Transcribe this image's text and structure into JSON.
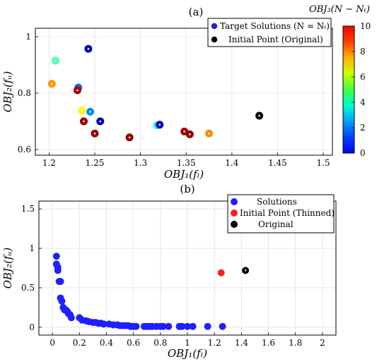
{
  "chart_data": [
    {
      "panel_label": "(a)",
      "type": "scatter",
      "xlabel": "OBJ₁(fₗ)",
      "ylabel": "OBJ₂(fᵤ)",
      "xlim": [
        1.185,
        1.51
      ],
      "ylim": [
        0.58,
        1.03
      ],
      "xticks": [
        1.2,
        1.25,
        1.3,
        1.35,
        1.4,
        1.45,
        1.5
      ],
      "yticks": [
        0.6,
        0.8,
        1
      ],
      "xtick_labels": [
        "1.2",
        "1.25",
        "1.3",
        "1.35",
        "1.4",
        "1.45",
        "1.5"
      ],
      "ytick_labels": [
        "0.6",
        "0.8",
        "1"
      ],
      "grid": true,
      "legend_position": "top-right",
      "colorbar": {
        "label": "OBJ₃(N − Nₜ)",
        "min": 0,
        "max": 10,
        "ticks": [
          0,
          2,
          4,
          6,
          8,
          10
        ],
        "tick_labels": [
          "0",
          "2",
          "4",
          "6",
          "8",
          "10"
        ],
        "colormap": "jet"
      },
      "series": [
        {
          "name": "Target Solutions (N = Nₜ)",
          "color": "#1f1fd6",
          "points": [
            {
              "x": 1.243,
              "y": 0.957,
              "c": 0.5
            },
            {
              "x": 1.207,
              "y": 0.915,
              "c": 4.5
            },
            {
              "x": 1.203,
              "y": 0.833,
              "c": 7.3
            },
            {
              "x": 1.232,
              "y": 0.82,
              "c": 2.3
            },
            {
              "x": 1.231,
              "y": 0.81,
              "c": 9.6
            },
            {
              "x": 1.236,
              "y": 0.738,
              "c": 6.3
            },
            {
              "x": 1.245,
              "y": 0.734,
              "c": 2.6
            },
            {
              "x": 1.238,
              "y": 0.7,
              "c": 9.8
            },
            {
              "x": 1.256,
              "y": 0.7,
              "c": 0.4
            },
            {
              "x": 1.25,
              "y": 0.657,
              "c": 9.7
            },
            {
              "x": 1.288,
              "y": 0.643,
              "c": 9.8
            },
            {
              "x": 1.318,
              "y": 0.686,
              "c": 4.2
            },
            {
              "x": 1.321,
              "y": 0.688,
              "c": 0.6
            },
            {
              "x": 1.348,
              "y": 0.664,
              "c": 9.7
            },
            {
              "x": 1.354,
              "y": 0.654,
              "c": 9.8
            },
            {
              "x": 1.375,
              "y": 0.657,
              "c": 7.4
            }
          ]
        },
        {
          "name": "Initial Point (Original)",
          "color": "#000000",
          "points": [
            {
              "x": 1.43,
              "y": 0.72
            }
          ]
        }
      ]
    },
    {
      "panel_label": "(b)",
      "type": "scatter",
      "xlabel": "OBJ₁(fₗ)",
      "ylabel": "OBJ₂(fᵤ)",
      "xlim": [
        -0.1,
        2.1
      ],
      "ylim": [
        -0.1,
        1.6
      ],
      "xticks": [
        0,
        0.2,
        0.4,
        0.6,
        0.8,
        1,
        1.2,
        1.4,
        1.6,
        1.8,
        2
      ],
      "yticks": [
        0,
        0.5,
        1,
        1.5
      ],
      "xtick_labels": [
        "0",
        "0.2",
        "0.4",
        "0.6",
        "0.8",
        "1",
        "1.2",
        "1.4",
        "1.6",
        "1.8",
        "2"
      ],
      "ytick_labels": [
        "0",
        "0.5",
        "1",
        "1.5"
      ],
      "grid": true,
      "legend_position": "top-right",
      "series": [
        {
          "name": "Solutions",
          "color": "#1f1fff",
          "x": [
            0.03,
            0.03,
            0.04,
            0.04,
            0.05,
            0.06,
            0.06,
            0.07,
            0.08,
            0.09,
            0.1,
            0.11,
            0.12,
            0.13,
            0.14,
            0.2,
            0.22,
            0.25,
            0.27,
            0.3,
            0.32,
            0.34,
            0.36,
            0.38,
            0.42,
            0.45,
            0.48,
            0.5,
            0.52,
            0.54,
            0.56,
            0.58,
            0.6,
            0.62,
            0.68,
            0.7,
            0.72,
            0.74,
            0.77,
            0.8,
            0.82,
            0.86,
            0.94,
            0.96,
            1.0,
            1.04,
            1.15,
            1.26
          ],
          "y": [
            0.9,
            0.8,
            0.76,
            0.72,
            0.58,
            0.58,
            0.37,
            0.33,
            0.25,
            0.22,
            0.22,
            0.2,
            0.17,
            0.16,
            0.12,
            0.12,
            0.09,
            0.08,
            0.07,
            0.06,
            0.06,
            0.05,
            0.05,
            0.04,
            0.04,
            0.03,
            0.03,
            0.02,
            0.02,
            0.02,
            0.02,
            0.01,
            0.01,
            0.01,
            0.01,
            0.01,
            0.01,
            0.01,
            0.01,
            0.01,
            0.01,
            0.01,
            0.01,
            0.01,
            0.01,
            0.01,
            0.01,
            0.01
          ]
        },
        {
          "name": "Initial Point (Thinned)",
          "color": "#ff1f1f",
          "x": [
            1.25
          ],
          "y": [
            0.69
          ]
        },
        {
          "name": "Original",
          "color": "#000000",
          "x": [
            1.43
          ],
          "y": [
            0.72
          ]
        }
      ]
    }
  ]
}
